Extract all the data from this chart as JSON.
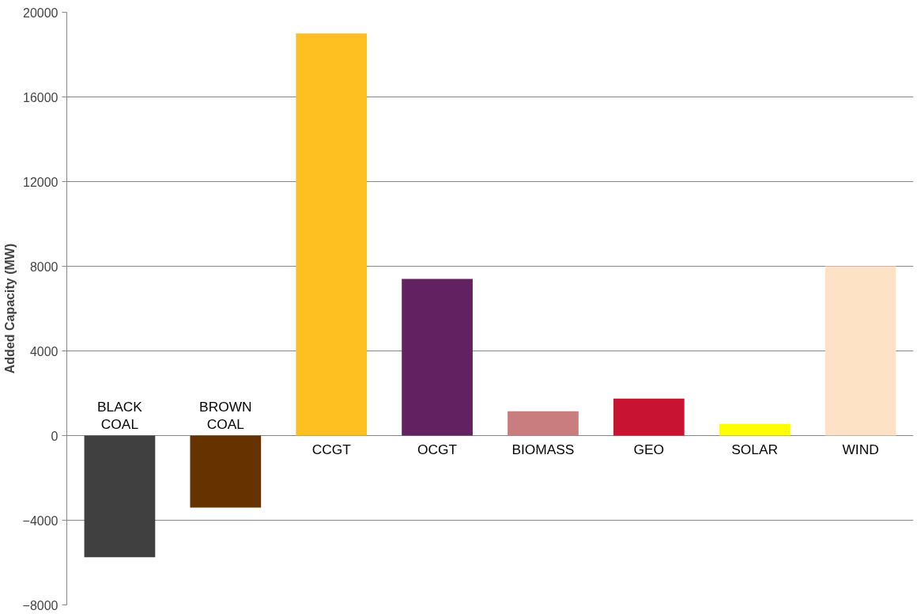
{
  "chart_data": {
    "type": "bar",
    "ylabel": "Added Capacity (MW)",
    "categories": [
      "BLACK COAL",
      "BROWN COAL",
      "CCGT",
      "OCGT",
      "BIOMASS",
      "GEO",
      "SOLAR",
      "WIND"
    ],
    "values": [
      -5750,
      -3400,
      19000,
      7400,
      1150,
      1750,
      550,
      8000
    ],
    "colors": [
      "#404040",
      "#663300",
      "#fdc020",
      "#622160",
      "#c97d7f",
      "#c81432",
      "#ffff00",
      "#fde2c6"
    ],
    "ylim": [
      -8000,
      20000
    ],
    "yticks": [
      -8000,
      -4000,
      0,
      4000,
      8000,
      12000,
      16000,
      20000
    ],
    "grid": "y"
  }
}
